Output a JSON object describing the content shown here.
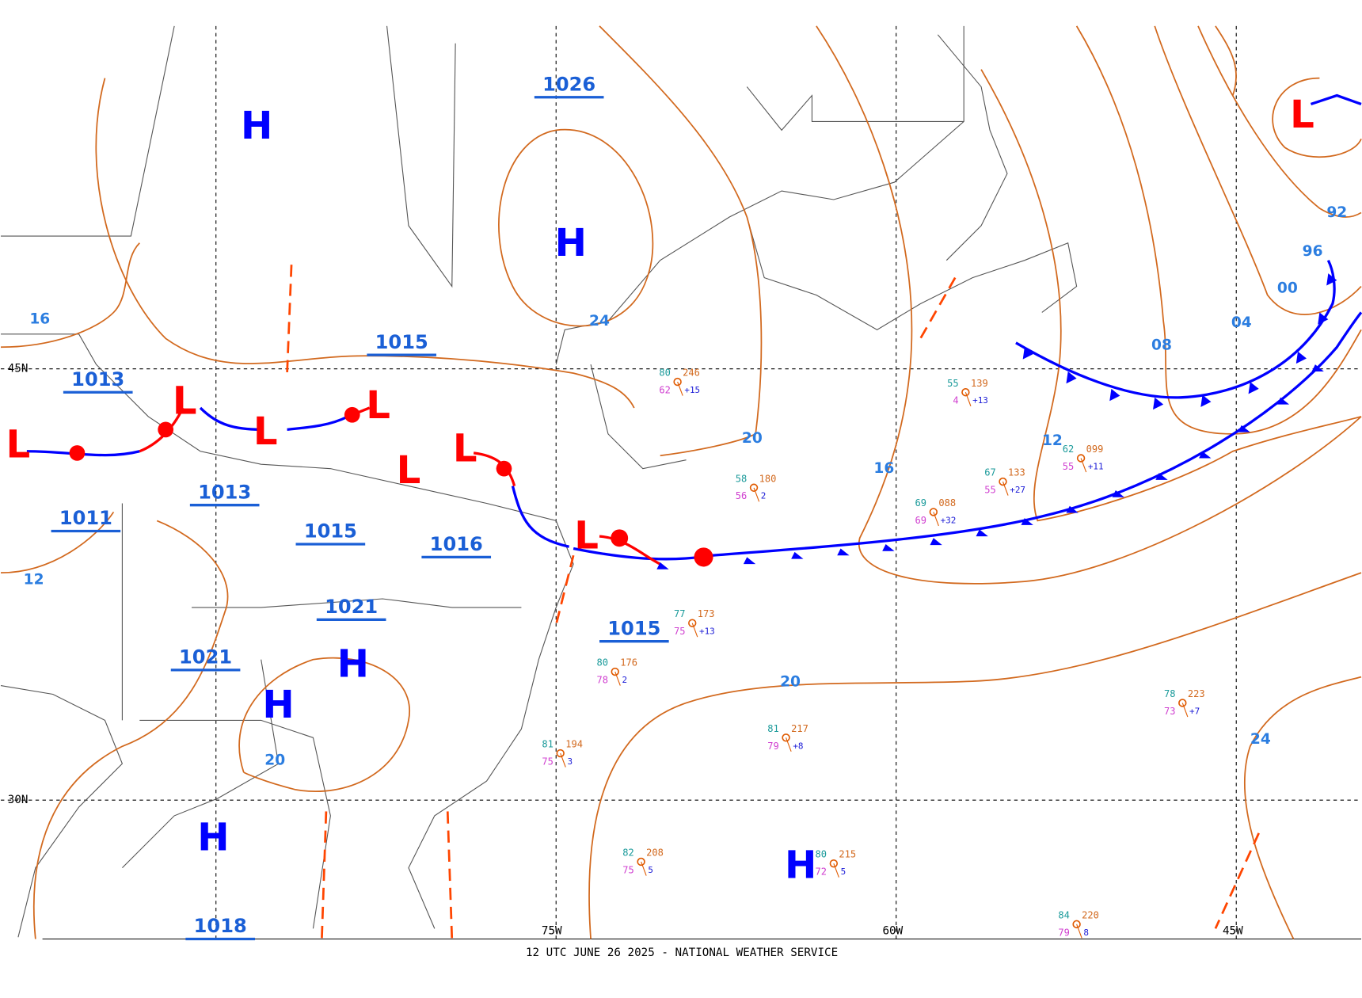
{
  "footer": "12 UTC JUNE 26 2025 - NATIONAL WEATHER SERVICE",
  "grid_labels": [
    "45N",
    "30N",
    "75W",
    "60W",
    "45W"
  ],
  "highs": [
    "H",
    "H",
    "H",
    "H",
    "H",
    "H"
  ],
  "lows": [
    "L",
    "L",
    "L",
    "L",
    "L",
    "L",
    "L",
    "L"
  ],
  "central_pressures": [
    "1026",
    "1015",
    "1013",
    "1013",
    "1011",
    "1015",
    "1016",
    "1021",
    "1021",
    "1015",
    "1018"
  ],
  "isobar_labels": [
    "24",
    "20",
    "16",
    "12",
    "08",
    "04",
    "00",
    "96",
    "92",
    "20",
    "24",
    "20",
    "16",
    "12"
  ],
  "stations": [
    {
      "temp": "80",
      "pressure": "176",
      "dewpoint": "78",
      "tendency": "2"
    },
    {
      "temp": "77",
      "pressure": "173",
      "dewpoint": "75",
      "tendency": "+13"
    },
    {
      "temp": "80",
      "pressure": "215",
      "dewpoint": "72",
      "tendency": "5"
    },
    {
      "temp": "82",
      "pressure": "208",
      "dewpoint": "75",
      "tendency": "5"
    },
    {
      "temp": "78",
      "pressure": "223",
      "dewpoint": "73",
      "tendency": "+7"
    },
    {
      "temp": "84",
      "pressure": "220",
      "dewpoint": "79",
      "tendency": "8"
    },
    {
      "temp": "69",
      "pressure": "088",
      "dewpoint": "69",
      "tendency": "+32"
    },
    {
      "temp": "55",
      "pressure": "139",
      "dewpoint": "4",
      "tendency": "+13"
    },
    {
      "temp": "62",
      "pressure": "099",
      "dewpoint": "55",
      "tendency": "+11"
    },
    {
      "temp": "67",
      "pressure": "133",
      "dewpoint": "55",
      "tendency": "+27"
    },
    {
      "temp": "58",
      "pressure": "180",
      "dewpoint": "56",
      "tendency": "2"
    },
    {
      "temp": "81",
      "pressure": "194",
      "dewpoint": "75",
      "tendency": "3"
    },
    {
      "temp": "81",
      "pressure": "217",
      "dewpoint": "79",
      "tendency": "+8"
    },
    {
      "temp": "80",
      "pressure": "246",
      "dewpoint": "62",
      "tendency": "+15"
    }
  ]
}
